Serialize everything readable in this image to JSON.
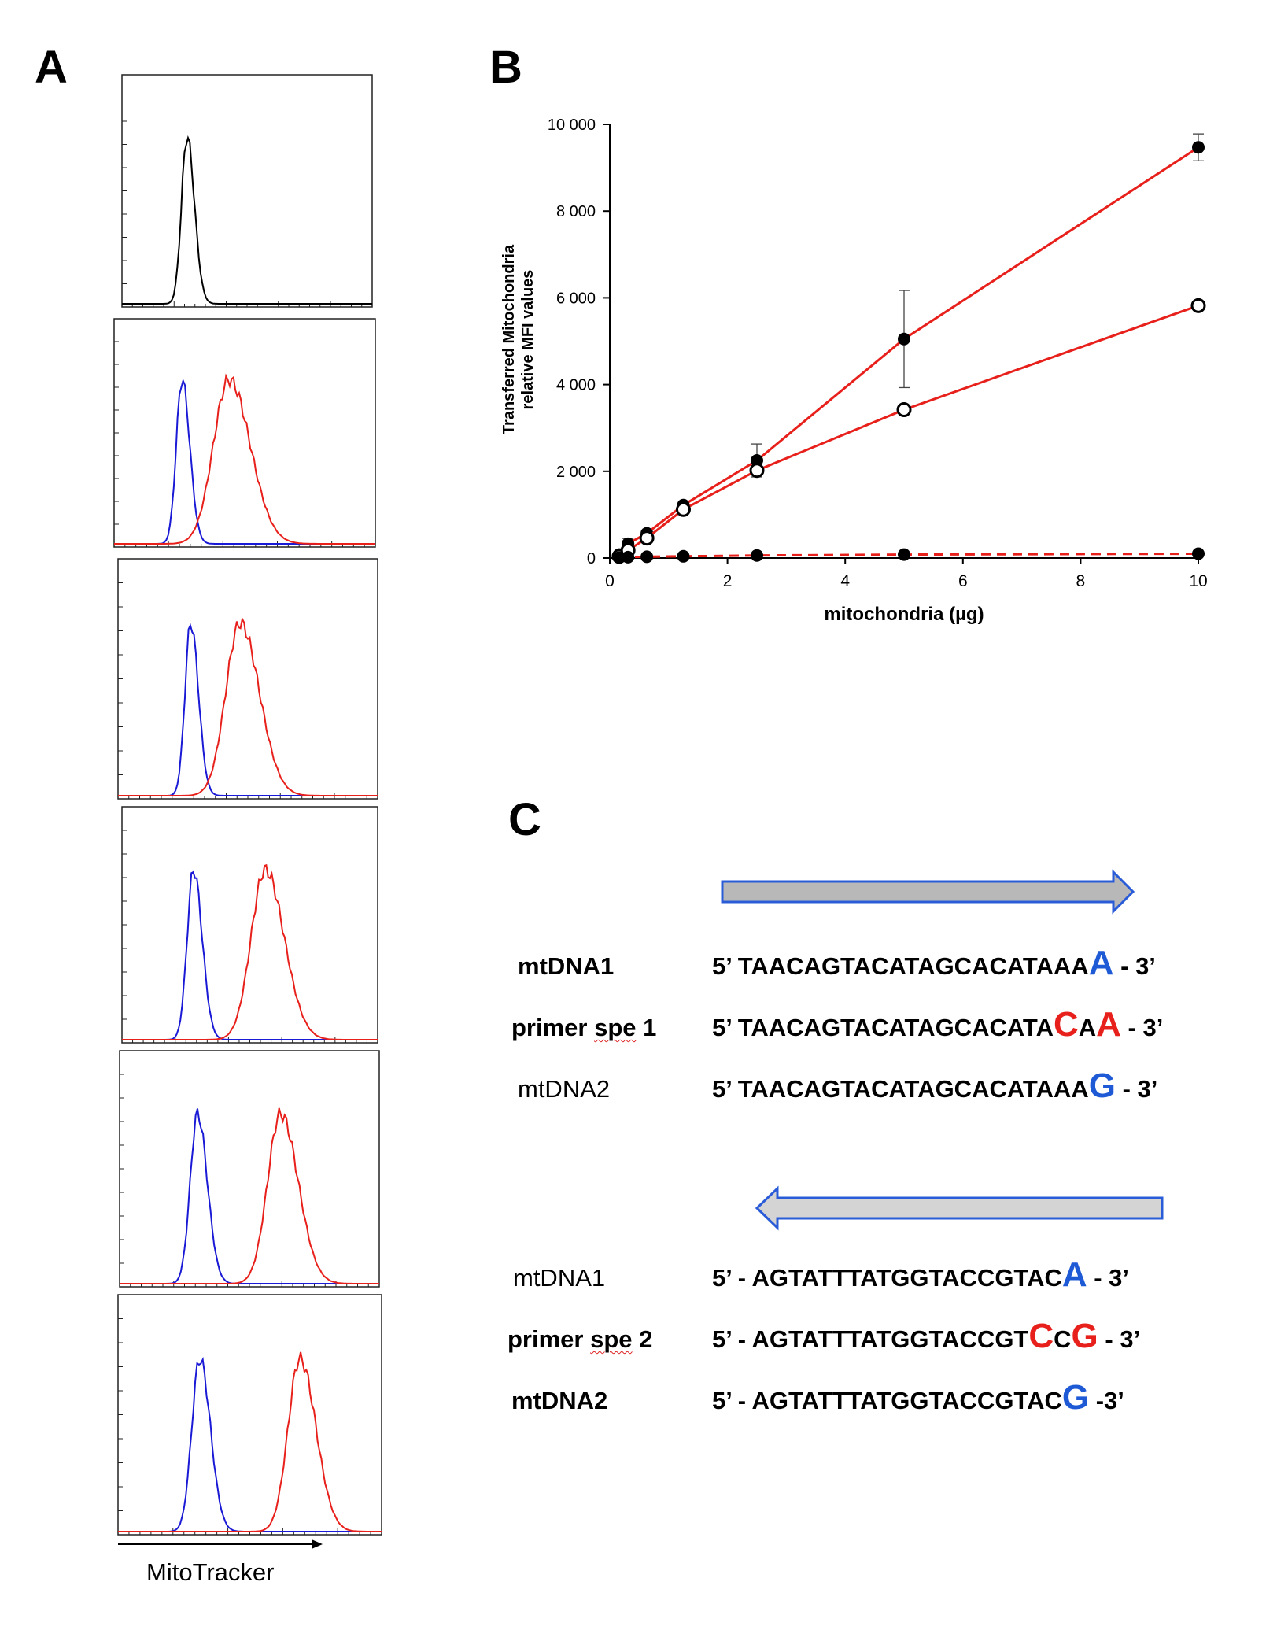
{
  "panels": {
    "a": "A",
    "b": "B",
    "c": "C"
  },
  "histograms": {
    "xlabel": "MitoTracker",
    "colors": {
      "control": "#000000",
      "unstained": "#1a1ad6",
      "stained": "#e8201b"
    },
    "rows": [
      {
        "curves": [
          {
            "kind": "control",
            "peak": 0.26,
            "width": 0.022
          }
        ]
      },
      {
        "curves": [
          {
            "kind": "unstained",
            "peak": 0.26,
            "width": 0.022
          },
          {
            "kind": "stained",
            "peak": 0.44,
            "width": 0.06
          }
        ]
      },
      {
        "curves": [
          {
            "kind": "unstained",
            "peak": 0.28,
            "width": 0.022
          },
          {
            "kind": "stained",
            "peak": 0.47,
            "width": 0.055
          }
        ]
      },
      {
        "curves": [
          {
            "kind": "unstained",
            "peak": 0.28,
            "width": 0.025
          },
          {
            "kind": "stained",
            "peak": 0.56,
            "width": 0.055
          }
        ]
      },
      {
        "curves": [
          {
            "kind": "unstained",
            "peak": 0.3,
            "width": 0.028
          },
          {
            "kind": "stained",
            "peak": 0.62,
            "width": 0.05
          }
        ]
      },
      {
        "curves": [
          {
            "kind": "unstained",
            "peak": 0.31,
            "width": 0.03
          },
          {
            "kind": "stained",
            "peak": 0.69,
            "width": 0.045
          }
        ]
      }
    ]
  },
  "chart_data": {
    "type": "line",
    "xlabel": "mitochondria (µg)",
    "ylabel_line1": "Transferred Mitochondria",
    "ylabel_line2": "relative MFI values",
    "xlim": [
      0,
      10
    ],
    "ylim": [
      0,
      10000
    ],
    "xticks": [
      "0",
      "2",
      "4",
      "6",
      "8",
      "10"
    ],
    "yticks": [
      "0",
      "2 000",
      "4 000",
      "6 000",
      "8 000",
      "10 000"
    ],
    "series": [
      {
        "name": "filled",
        "marker": "filled",
        "line": "solid",
        "color": "#e8201b",
        "x": [
          0.16,
          0.31,
          0.63,
          1.25,
          2.5,
          5,
          10
        ],
        "y": [
          80,
          330,
          570,
          1220,
          2250,
          5050,
          9470
        ],
        "err": [
          0,
          120,
          0,
          0,
          380,
          1120,
          310
        ]
      },
      {
        "name": "open",
        "marker": "open",
        "line": "solid",
        "color": "#e8201b",
        "x": [
          0.16,
          0.31,
          0.63,
          1.25,
          2.5,
          5,
          10
        ],
        "y": [
          40,
          180,
          460,
          1120,
          2020,
          3420,
          5820
        ],
        "err": [
          0,
          0,
          0,
          0,
          0,
          0,
          0
        ]
      },
      {
        "name": "control",
        "marker": "filled",
        "line": "dashed",
        "color": "#e8201b",
        "x": [
          0.16,
          0.31,
          0.63,
          1.25,
          2.5,
          5,
          10
        ],
        "y": [
          10,
          20,
          30,
          40,
          60,
          80,
          100
        ],
        "err": [
          0,
          0,
          0,
          0,
          0,
          0,
          0
        ]
      }
    ]
  },
  "sequences": {
    "forward": [
      {
        "label": "mtDNA1",
        "label_bold": true,
        "squiggle": "",
        "parts": [
          {
            "t": "5’ TAACAGTACATAGCACATAAA",
            "c": ""
          },
          {
            "t": "A",
            "c": "blue",
            "big": true
          },
          {
            "t": " - 3’",
            "c": ""
          }
        ]
      },
      {
        "label": "primer spe 1",
        "label_bold": true,
        "squiggle": "spe",
        "parts": [
          {
            "t": "5’ TAACAGTACATAGCACATA",
            "c": ""
          },
          {
            "t": "C",
            "c": "red",
            "big": true
          },
          {
            "t": "A",
            "c": ""
          },
          {
            "t": "A",
            "c": "red",
            "big": true
          },
          {
            "t": " - 3’",
            "c": ""
          }
        ]
      },
      {
        "label": "mtDNA2",
        "label_bold": false,
        "squiggle": "",
        "parts": [
          {
            "t": "5’ TAACAGTACATAGCACATAAA",
            "c": ""
          },
          {
            "t": "G",
            "c": "blue",
            "big": true
          },
          {
            "t": " - 3’",
            "c": ""
          }
        ]
      }
    ],
    "reverse": [
      {
        "label": "mtDNA1",
        "label_bold": false,
        "squiggle": "",
        "parts": [
          {
            "t": "5’ - AGTATTTATGGTACCGTAC",
            "c": ""
          },
          {
            "t": "A",
            "c": "blue",
            "big": true
          },
          {
            "t": " - 3’",
            "c": ""
          }
        ]
      },
      {
        "label": "primer spe 2",
        "label_bold": true,
        "squiggle": "spe",
        "parts": [
          {
            "t": "5’ - AGTATTTATGGTACCGT",
            "c": ""
          },
          {
            "t": "C",
            "c": "red",
            "big": true
          },
          {
            "t": "C",
            "c": ""
          },
          {
            "t": "G",
            "c": "red",
            "big": true
          },
          {
            "t": " - 3’",
            "c": ""
          }
        ]
      },
      {
        "label": "mtDNA2",
        "label_bold": true,
        "squiggle": "",
        "parts": [
          {
            "t": "5’ - AGTATTTATGGTACCGTAC",
            "c": ""
          },
          {
            "t": "G",
            "c": "blue",
            "big": true
          },
          {
            "t": "  -3’",
            "c": ""
          }
        ]
      }
    ]
  }
}
